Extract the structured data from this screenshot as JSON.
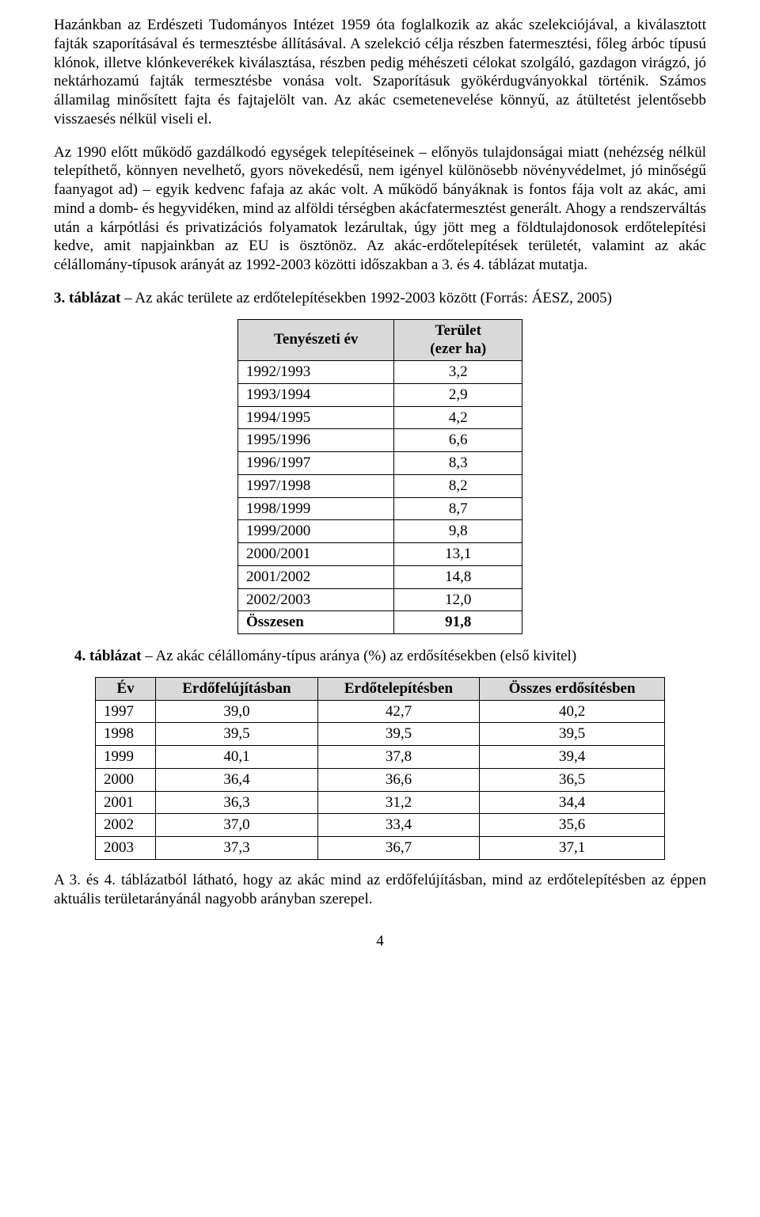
{
  "paragraphs": {
    "p1": "Hazánkban az Erdészeti Tudományos Intézet 1959 óta foglalkozik az akác szelekciójával, a kiválasztott fajták szaporításával és termesztésbe állításával. A szelekció célja részben fatermesztési, főleg árbóc típusú klónok, illetve klónkeverékek kiválasztása, részben pedig méhészeti célokat szolgáló, gazdagon virágzó, jó nektárhozamú fajták termesztésbe vonása volt. Szaporításuk gyökérdugványokkal történik. Számos államilag minősített fajta és fajtajelölt van. Az akác csemetenevelése könnyű, az átültetést jelentősebb visszaesés nélkül viseli el.",
    "p2": "Az 1990 előtt működő gazdálkodó egységek telepítéseinek – előnyös tulajdonságai miatt (nehézség nélkül telepíthető, könnyen nevelhető, gyors növekedésű, nem igényel különösebb növényvédelmet, jó minőségű faanyagot ad) – egyik kedvenc fafaja az akác volt. A működő bányáknak is fontos fája volt az akác, ami mind a domb- és hegyvidéken, mind az alföldi térségben akácfatermesztést generált. Ahogy a rendszerváltás után a kárpótlási és privatizációs folyamatok lezárultak, úgy jött meg a földtulajdonosok erdőtelepítési kedve, amit napjainkban az EU is ösztönöz. Az akác-erdőtelepítések területét, valamint az akác célállomány-típusok arányát az 1992-2003 közötti időszakban a 3. és 4. táblázat mutatja.",
    "p3": "A 3. és 4. táblázatból látható, hogy az akác mind az erdőfelújításban, mind az erdőtelepítésben az éppen aktuális területarányánál nagyobb arányban szerepel."
  },
  "table3": {
    "caption_lead": "3. táblázat",
    "caption_rest": " – Az akác területe az erdőtelepítésekben 1992-2003 között (Forrás: ÁESZ, 2005)",
    "col1": "Tenyészeti év",
    "col2_line1": "Terület",
    "col2_line2": "(ezer ha)",
    "rows": [
      {
        "year": "1992/1993",
        "val": "3,2"
      },
      {
        "year": "1993/1994",
        "val": "2,9"
      },
      {
        "year": "1994/1995",
        "val": "4,2"
      },
      {
        "year": "1995/1996",
        "val": "6,6"
      },
      {
        "year": "1996/1997",
        "val": "8,3"
      },
      {
        "year": "1997/1998",
        "val": "8,2"
      },
      {
        "year": "1998/1999",
        "val": "8,7"
      },
      {
        "year": "1999/2000",
        "val": "9,8"
      },
      {
        "year": "2000/2001",
        "val": "13,1"
      },
      {
        "year": "2001/2002",
        "val": "14,8"
      },
      {
        "year": "2002/2003",
        "val": "12,0"
      }
    ],
    "total_label": "Összesen",
    "total_val": "91,8",
    "header_bg": "#d9d9d9"
  },
  "table4": {
    "caption_lead": "4. táblázat",
    "caption_rest": " – Az akác célállomány-típus aránya (%) az erdősítésekben (első kivitel)",
    "col1": "Év",
    "col2": "Erdőfelújításban",
    "col3": "Erdőtelepítésben",
    "col4": "Összes erdősítésben",
    "rows": [
      {
        "y": "1997",
        "a": "39,0",
        "b": "42,7",
        "c": "40,2"
      },
      {
        "y": "1998",
        "a": "39,5",
        "b": "39,5",
        "c": "39,5"
      },
      {
        "y": "1999",
        "a": "40,1",
        "b": "37,8",
        "c": "39,4"
      },
      {
        "y": "2000",
        "a": "36,4",
        "b": "36,6",
        "c": "36,5"
      },
      {
        "y": "2001",
        "a": "36,3",
        "b": "31,2",
        "c": "34,4"
      },
      {
        "y": "2002",
        "a": "37,0",
        "b": "33,4",
        "c": "35,6"
      },
      {
        "y": "2003",
        "a": "37,3",
        "b": "36,7",
        "c": "37,1"
      }
    ],
    "header_bg": "#d9d9d9"
  },
  "page_number": "4"
}
